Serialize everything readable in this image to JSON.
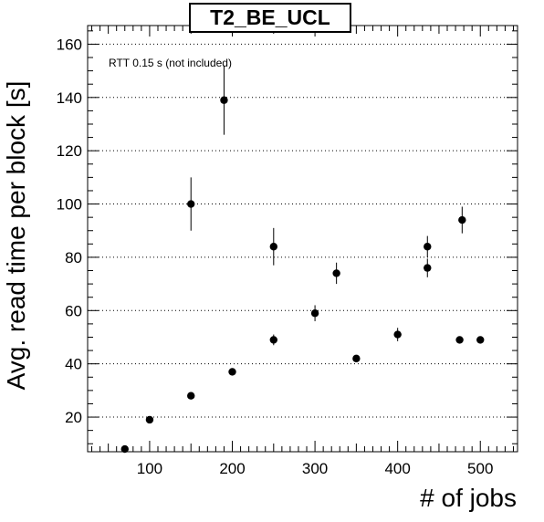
{
  "chart_data": {
    "type": "scatter",
    "title": "T2_BE_UCL",
    "annotation": "RTT 0.15 s (not included)",
    "xlabel": "# of jobs",
    "ylabel": "Avg. read time per block [s]",
    "xlim": [
      25,
      545
    ],
    "ylim": [
      7,
      167
    ],
    "xticks": [
      100,
      200,
      300,
      400,
      500
    ],
    "yticks": [
      20,
      40,
      60,
      80,
      100,
      120,
      140,
      160
    ],
    "grid": "horizontal-dotted",
    "points": [
      {
        "x": 70,
        "y": 8,
        "err": 0
      },
      {
        "x": 100,
        "y": 19,
        "err": 0
      },
      {
        "x": 150,
        "y": 28,
        "err": 0
      },
      {
        "x": 150,
        "y": 100,
        "err": 10
      },
      {
        "x": 190,
        "y": 139,
        "err": 13
      },
      {
        "x": 200,
        "y": 37,
        "err": 0
      },
      {
        "x": 250,
        "y": 49,
        "err": 2
      },
      {
        "x": 250,
        "y": 84,
        "err": 7
      },
      {
        "x": 300,
        "y": 59,
        "err": 3
      },
      {
        "x": 326,
        "y": 74,
        "err": 4
      },
      {
        "x": 350,
        "y": 42,
        "err": 0
      },
      {
        "x": 400,
        "y": 51,
        "err": 2.5
      },
      {
        "x": 436,
        "y": 84,
        "err": 4
      },
      {
        "x": 436,
        "y": 76,
        "err": 3.5
      },
      {
        "x": 475,
        "y": 49,
        "err": 0
      },
      {
        "x": 478,
        "y": 94,
        "err": 5
      },
      {
        "x": 500,
        "y": 49,
        "err": 0
      }
    ]
  }
}
